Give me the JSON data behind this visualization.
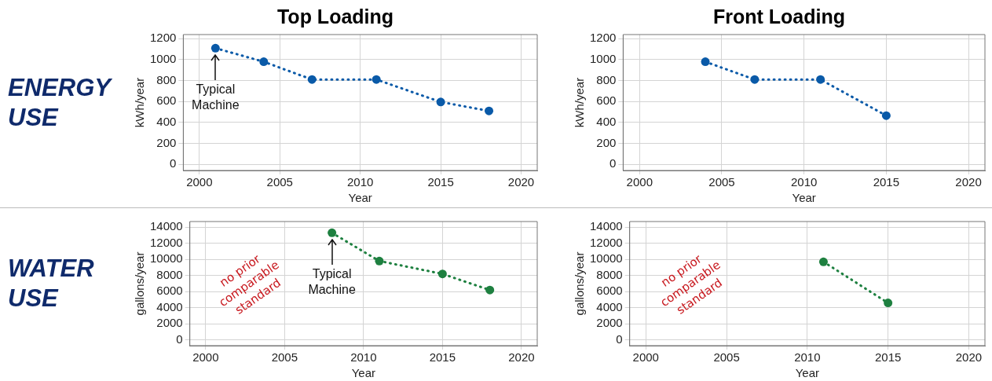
{
  "chart_data": [
    {
      "type": "line",
      "title": "Top Loading",
      "subtitle": "ENERGY USE",
      "xlabel": "Year",
      "ylabel": "kWh/year",
      "x": [
        2001,
        2004,
        2007,
        2011,
        2015,
        2018
      ],
      "series": [
        {
          "color": "#0a5aa8",
          "values": [
            1110,
            980,
            810,
            810,
            595,
            510
          ]
        }
      ],
      "xlim": [
        1999,
        2021
      ],
      "xticks": [
        2000,
        2005,
        2010,
        2015,
        2020
      ],
      "ylim": [
        -60,
        1240
      ],
      "yticks": [
        0,
        200,
        400,
        600,
        800,
        1000,
        1200
      ],
      "grid": true,
      "marker": "circle",
      "line_style": "dotted",
      "annotations": [
        {
          "text": "Typical Machine",
          "x": 2001,
          "y": 1110
        }
      ]
    },
    {
      "type": "line",
      "title": "Front Loading",
      "xlabel": "Year",
      "ylabel": "kWh/year",
      "x": [
        2004,
        2007,
        2011,
        2015
      ],
      "series": [
        {
          "color": "#0a5aa8",
          "values": [
            980,
            810,
            810,
            465
          ]
        }
      ],
      "xlim": [
        1999,
        2021
      ],
      "xticks": [
        2000,
        2005,
        2010,
        2015,
        2020
      ],
      "ylim": [
        -60,
        1240
      ],
      "yticks": [
        0,
        200,
        400,
        600,
        800,
        1000,
        1200
      ],
      "grid": true,
      "marker": "circle",
      "line_style": "dotted"
    },
    {
      "type": "line",
      "subtitle": "WATER USE",
      "xlabel": "Year",
      "ylabel": "gallons/year",
      "x": [
        2008,
        2011,
        2015,
        2018
      ],
      "series": [
        {
          "color": "#1e8040",
          "values": [
            13300,
            9800,
            8200,
            6200
          ]
        }
      ],
      "xlim": [
        1999,
        2021
      ],
      "xticks": [
        2000,
        2005,
        2010,
        2015,
        2020
      ],
      "ylim": [
        -700,
        14700
      ],
      "yticks": [
        0,
        2000,
        4000,
        6000,
        8000,
        10000,
        12000,
        14000
      ],
      "grid": true,
      "marker": "circle",
      "line_style": "dotted",
      "annotations": [
        "no prior comparable standard",
        {
          "text": "Typical Machine",
          "x": 2008,
          "y": 13300
        }
      ]
    },
    {
      "type": "line",
      "xlabel": "Year",
      "ylabel": "gallons/year",
      "x": [
        2011,
        2015
      ],
      "series": [
        {
          "color": "#1e8040",
          "values": [
            9700,
            4600
          ]
        }
      ],
      "xlim": [
        1999,
        2021
      ],
      "xticks": [
        2000,
        2005,
        2010,
        2015,
        2020
      ],
      "ylim": [
        -700,
        14700
      ],
      "yticks": [
        0,
        2000,
        4000,
        6000,
        8000,
        10000,
        12000,
        14000
      ],
      "grid": true,
      "marker": "circle",
      "line_style": "dotted",
      "annotations": [
        "no prior comparable standard"
      ]
    }
  ]
}
